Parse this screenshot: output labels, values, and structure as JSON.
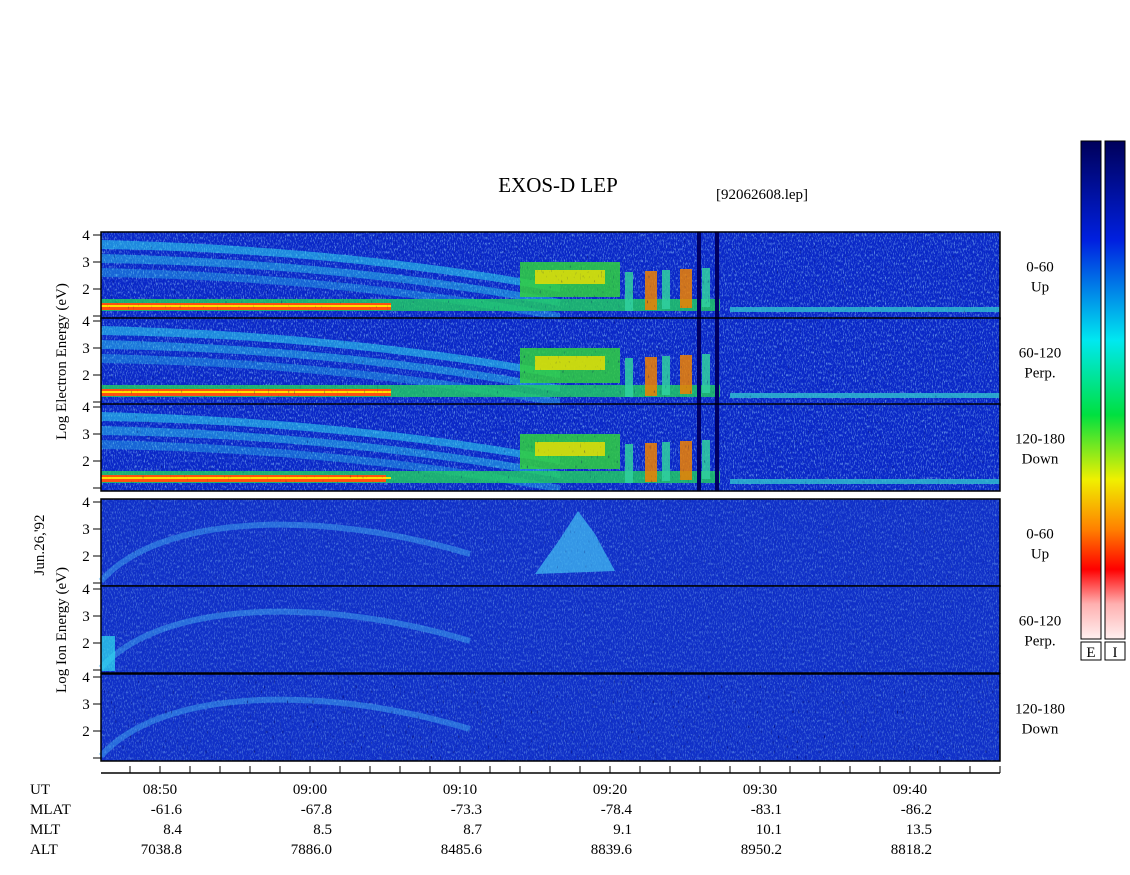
{
  "header": {
    "title": "EXOS-D LEP",
    "file": "[92062608.lep]",
    "date": "Jun.26,'92"
  },
  "groups": [
    {
      "axis_label": "Log  Electron  Energy (eV)",
      "panels": [
        {
          "angle": "0-60",
          "direction": "Up"
        },
        {
          "angle": "60-120",
          "direction": "Perp."
        },
        {
          "angle": "120-180",
          "direction": "Down"
        }
      ]
    },
    {
      "axis_label": "Log  Ion  Energy (eV)",
      "panels": [
        {
          "angle": "0-60",
          "direction": "Up"
        },
        {
          "angle": "60-120",
          "direction": "Perp."
        },
        {
          "angle": "120-180",
          "direction": "Down"
        }
      ]
    }
  ],
  "energy_ticks": [
    "4",
    "3",
    "2"
  ],
  "ephemeris": [
    {
      "name": "UT",
      "values": [
        "08:50",
        "09:00",
        "09:10",
        "09:20",
        "09:30",
        "09:40"
      ]
    },
    {
      "name": "MLAT",
      "values": [
        "-61.6",
        "-67.8",
        "-73.3",
        "-78.4",
        "-83.1",
        "-86.2"
      ]
    },
    {
      "name": "MLT",
      "values": [
        "8.4",
        "8.5",
        "8.7",
        "9.1",
        "10.1",
        "13.5"
      ]
    },
    {
      "name": "ALT",
      "values": [
        "7038.8",
        "7886.0",
        "8485.6",
        "8839.6",
        "8950.2",
        "8818.2"
      ]
    }
  ],
  "colorbars": [
    "E",
    "I"
  ]
}
